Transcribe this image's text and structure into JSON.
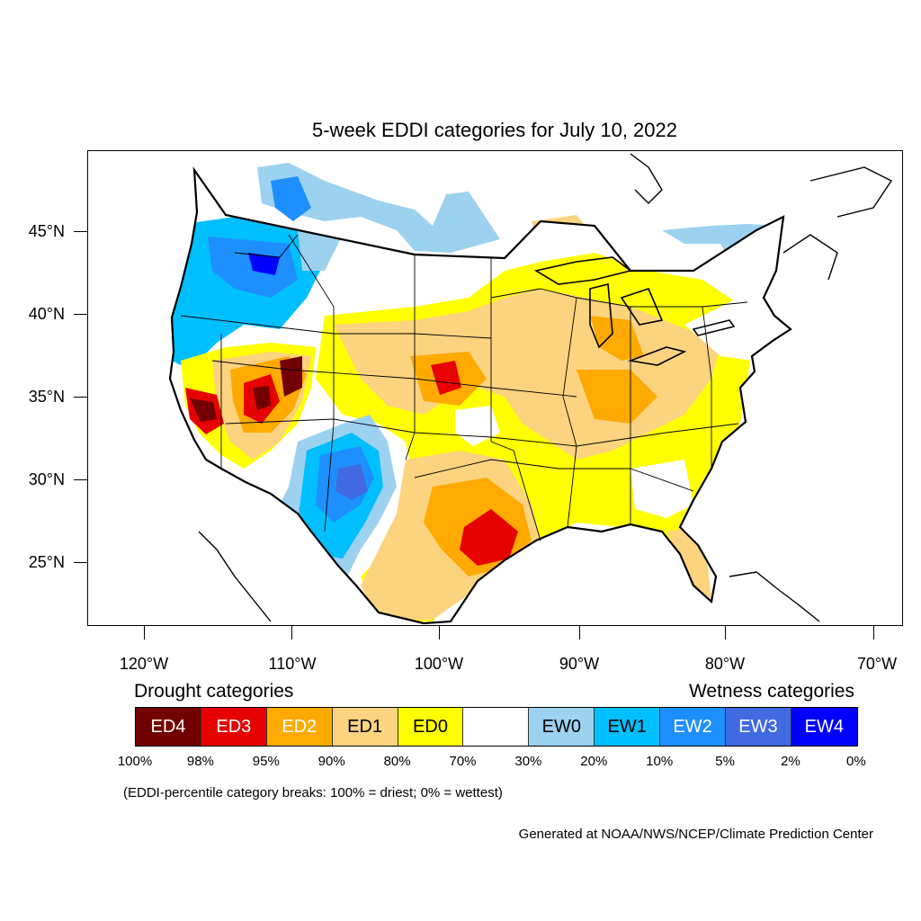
{
  "title": "5-week EDDI categories for July 10, 2022",
  "latitude_labels": [
    "45°N",
    "40°N",
    "35°N",
    "30°N",
    "25°N"
  ],
  "longitude_labels": [
    "120°W",
    "110°W",
    "100°W",
    "90°W",
    "80°W",
    "70°W"
  ],
  "legend": {
    "drought_heading": "Drought categories",
    "wetness_heading": "Wetness categories",
    "categories": [
      {
        "label": "ED4",
        "color": "#730000",
        "text_color": "#ffffff"
      },
      {
        "label": "ED3",
        "color": "#e60000",
        "text_color": "#ffffff"
      },
      {
        "label": "ED2",
        "color": "#ffaa00",
        "text_color": "#ffffff"
      },
      {
        "label": "ED1",
        "color": "#fcd37f",
        "text_color": "#000000"
      },
      {
        "label": "ED0",
        "color": "#ffff00",
        "text_color": "#000000"
      },
      {
        "label": "",
        "color": "#ffffff",
        "text_color": "#000000"
      },
      {
        "label": "EW0",
        "color": "#9dd1f0",
        "text_color": "#000000"
      },
      {
        "label": "EW1",
        "color": "#00bfff",
        "text_color": "#000000"
      },
      {
        "label": "EW2",
        "color": "#1e8fff",
        "text_color": "#ffffff"
      },
      {
        "label": "EW3",
        "color": "#4169e1",
        "text_color": "#ffffff"
      },
      {
        "label": "EW4",
        "color": "#0000ff",
        "text_color": "#ffffff"
      }
    ],
    "percentiles": [
      "100%",
      "98%",
      "95%",
      "90%",
      "80%",
      "70%",
      "30%",
      "20%",
      "10%",
      "5%",
      "2%",
      "0%"
    ]
  },
  "breaks_note": "(EDDI-percentile category breaks: 100% = driest; 0% = wettest)",
  "credit": "Generated at NOAA/NWS/NCEP/Climate Prediction Center"
}
